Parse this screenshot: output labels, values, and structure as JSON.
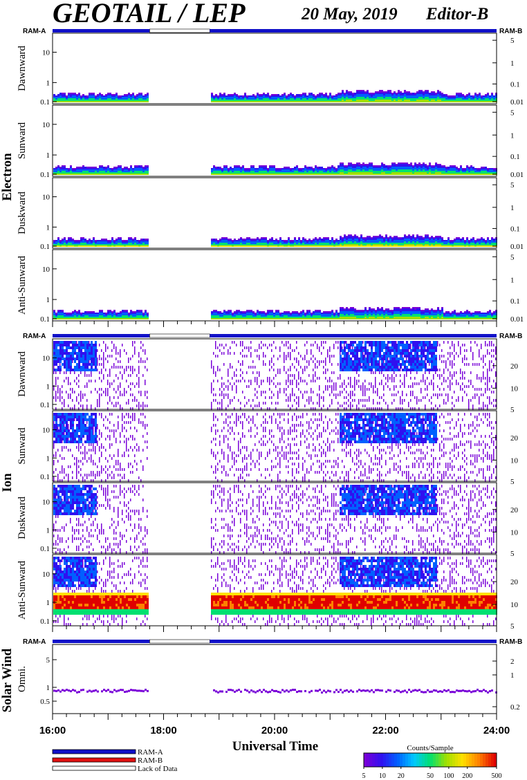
{
  "header": {
    "title": "GEOTAIL / LEP",
    "date": "20 May, 2019",
    "editor": "Editor-B"
  },
  "colors": {
    "ram_a": "#1010c8",
    "ram_b": "#e01010",
    "lack": "#ffffff"
  },
  "chart_data": {
    "type": "heatmap",
    "xlabel": "Universal Time",
    "x_ticks": [
      "16:00",
      "18:00",
      "20:00",
      "22:00",
      "24:00"
    ],
    "xlim_hours": [
      16,
      24
    ],
    "data_gap_hours": [
      17.75,
      18.8333
    ],
    "groups": [
      {
        "name": "Electron",
        "ram_label_left": "RAM-A",
        "ram_label_right": "RAM-B",
        "panels": [
          {
            "label": "Dawnward",
            "yticks": [
              "10",
              "1",
              "0.1"
            ],
            "rticks": [
              "5",
              "1",
              "0.1",
              "0.01"
            ]
          },
          {
            "label": "Sunward",
            "yticks": [
              "10",
              "1",
              "0.1"
            ],
            "rticks": [
              "5",
              "1",
              "0.1",
              "0.01"
            ]
          },
          {
            "label": "Duskward",
            "yticks": [
              "10",
              "1",
              "0.1"
            ],
            "rticks": [
              "5",
              "1",
              "0.1",
              "0.01"
            ]
          },
          {
            "label": "Anti-Sunward",
            "yticks": [
              "10",
              "1",
              "0.1"
            ],
            "rticks": [
              "5",
              "1",
              "0.1",
              "0.01"
            ]
          }
        ]
      },
      {
        "name": "Ion",
        "ram_label_left": "RAM-A",
        "ram_label_right": "RAM-B",
        "panels": [
          {
            "label": "Dawnward",
            "yticks": [
              "10",
              "1",
              "0.1"
            ],
            "rticks": [
              "20",
              "10",
              "5"
            ]
          },
          {
            "label": "Sunward",
            "yticks": [
              "10",
              "1",
              "0.1"
            ],
            "rticks": [
              "20",
              "10",
              "5"
            ]
          },
          {
            "label": "Duskward",
            "yticks": [
              "10",
              "1",
              "0.1"
            ],
            "rticks": [
              "20",
              "10",
              "5"
            ]
          },
          {
            "label": "Anti-Sunward",
            "yticks": [
              "10",
              "1",
              "0.1"
            ],
            "rticks": [
              "20",
              "10",
              "5"
            ]
          }
        ]
      },
      {
        "name": "Solar Wind",
        "ram_label_left": "RAM-A",
        "ram_label_right": "RAM-B",
        "panels": [
          {
            "label": "Omni.",
            "yticks": [
              "5",
              "1",
              "0.5"
            ],
            "rticks": [
              "2",
              "1",
              "0.2"
            ]
          }
        ]
      }
    ],
    "legend": [
      {
        "label": "RAM-A",
        "color": "#1010c8"
      },
      {
        "label": "RAM-B",
        "color": "#e01010"
      },
      {
        "label": "Lack of Data",
        "color": "#ffffff"
      }
    ],
    "colorbar": {
      "title": "Counts/Sample",
      "ticks": [
        "5",
        "10",
        "20",
        "50",
        "100",
        "200",
        "500"
      ],
      "colors": [
        "#7a00d8",
        "#3010f0",
        "#0060ff",
        "#00c8ff",
        "#00e070",
        "#a0e000",
        "#ffe000",
        "#ff8000",
        "#e00000"
      ]
    }
  }
}
